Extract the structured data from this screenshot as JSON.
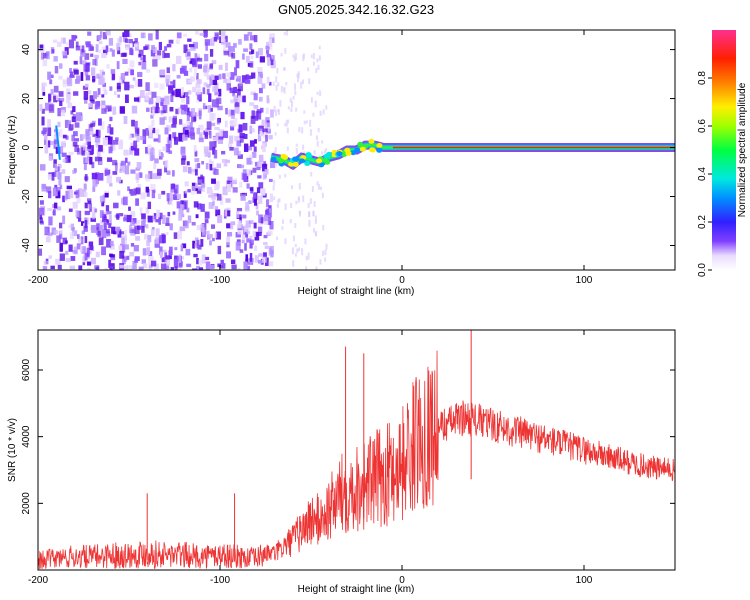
{
  "figure": {
    "title": "GN05.2025.342.16.32.G23"
  },
  "chart_data": [
    {
      "type": "heatmap",
      "title": "",
      "xlabel": "Height of straight line (km)",
      "ylabel": "Frequency (Hz)",
      "xlim": [
        -200,
        150
      ],
      "ylim": [
        -50,
        48
      ],
      "xticks": [
        -200,
        -100,
        0,
        100
      ],
      "yticks": [
        -40,
        -20,
        0,
        20,
        40
      ],
      "colorbar": {
        "label": "Normalized spectral amplitude",
        "range": [
          0,
          1
        ],
        "ticks": [
          "0.0",
          "0.2",
          "0.4",
          "0.6",
          "0.8"
        ]
      },
      "noise_region_x": [
        -200,
        -72
      ],
      "ridge": {
        "x": [
          -72,
          -65,
          -60,
          -55,
          -50,
          -45,
          -40,
          -35,
          -30,
          -25,
          -20,
          -15,
          -10,
          -5,
          0,
          10,
          30,
          60,
          100,
          150
        ],
        "y": [
          -4,
          -5,
          -7,
          -4,
          -5,
          -6,
          -4,
          -3,
          -1,
          -1,
          1,
          1,
          0,
          0,
          0,
          0,
          0,
          0,
          0,
          0
        ]
      },
      "grid": false
    },
    {
      "type": "line",
      "title": "",
      "xlabel": "Height of straight line (km)",
      "ylabel": "SNR (10 * v/v)",
      "xlim": [
        -200,
        150
      ],
      "ylim": [
        0,
        7200
      ],
      "xticks": [
        -200,
        -100,
        0,
        100
      ],
      "yticks": [
        2000,
        4000,
        6000
      ],
      "color": "#ee3333",
      "series": [
        {
          "name": "",
          "x": [
            -200,
            -190,
            -180,
            -170,
            -160,
            -150,
            -140,
            -130,
            -120,
            -110,
            -100,
            -90,
            -80,
            -75,
            -70,
            -65,
            -60,
            -55,
            -50,
            -45,
            -40,
            -35,
            -30,
            -25,
            -20,
            -15,
            -10,
            -5,
            0,
            5,
            10,
            15,
            20,
            25,
            30,
            35,
            40,
            50,
            60,
            70,
            80,
            90,
            100,
            110,
            120,
            130,
            140,
            150
          ],
          "values": [
            300,
            350,
            400,
            400,
            450,
            450,
            500,
            450,
            450,
            400,
            450,
            400,
            350,
            500,
            500,
            700,
            900,
            1200,
            1500,
            1500,
            1800,
            2200,
            2400,
            2500,
            2600,
            2700,
            2800,
            3000,
            3200,
            3600,
            4000,
            4200,
            4300,
            4400,
            4500,
            4600,
            4500,
            4350,
            4200,
            4050,
            3900,
            3750,
            3600,
            3450,
            3300,
            3150,
            3050,
            3000
          ],
          "peaks": [
            {
              "x": 38,
              "y": 7200
            },
            {
              "x": -31,
              "y": 6700
            },
            {
              "x": -21,
              "y": 6500
            },
            {
              "x": -140,
              "y": 2300
            },
            {
              "x": -92,
              "y": 2300
            }
          ]
        }
      ]
    }
  ]
}
